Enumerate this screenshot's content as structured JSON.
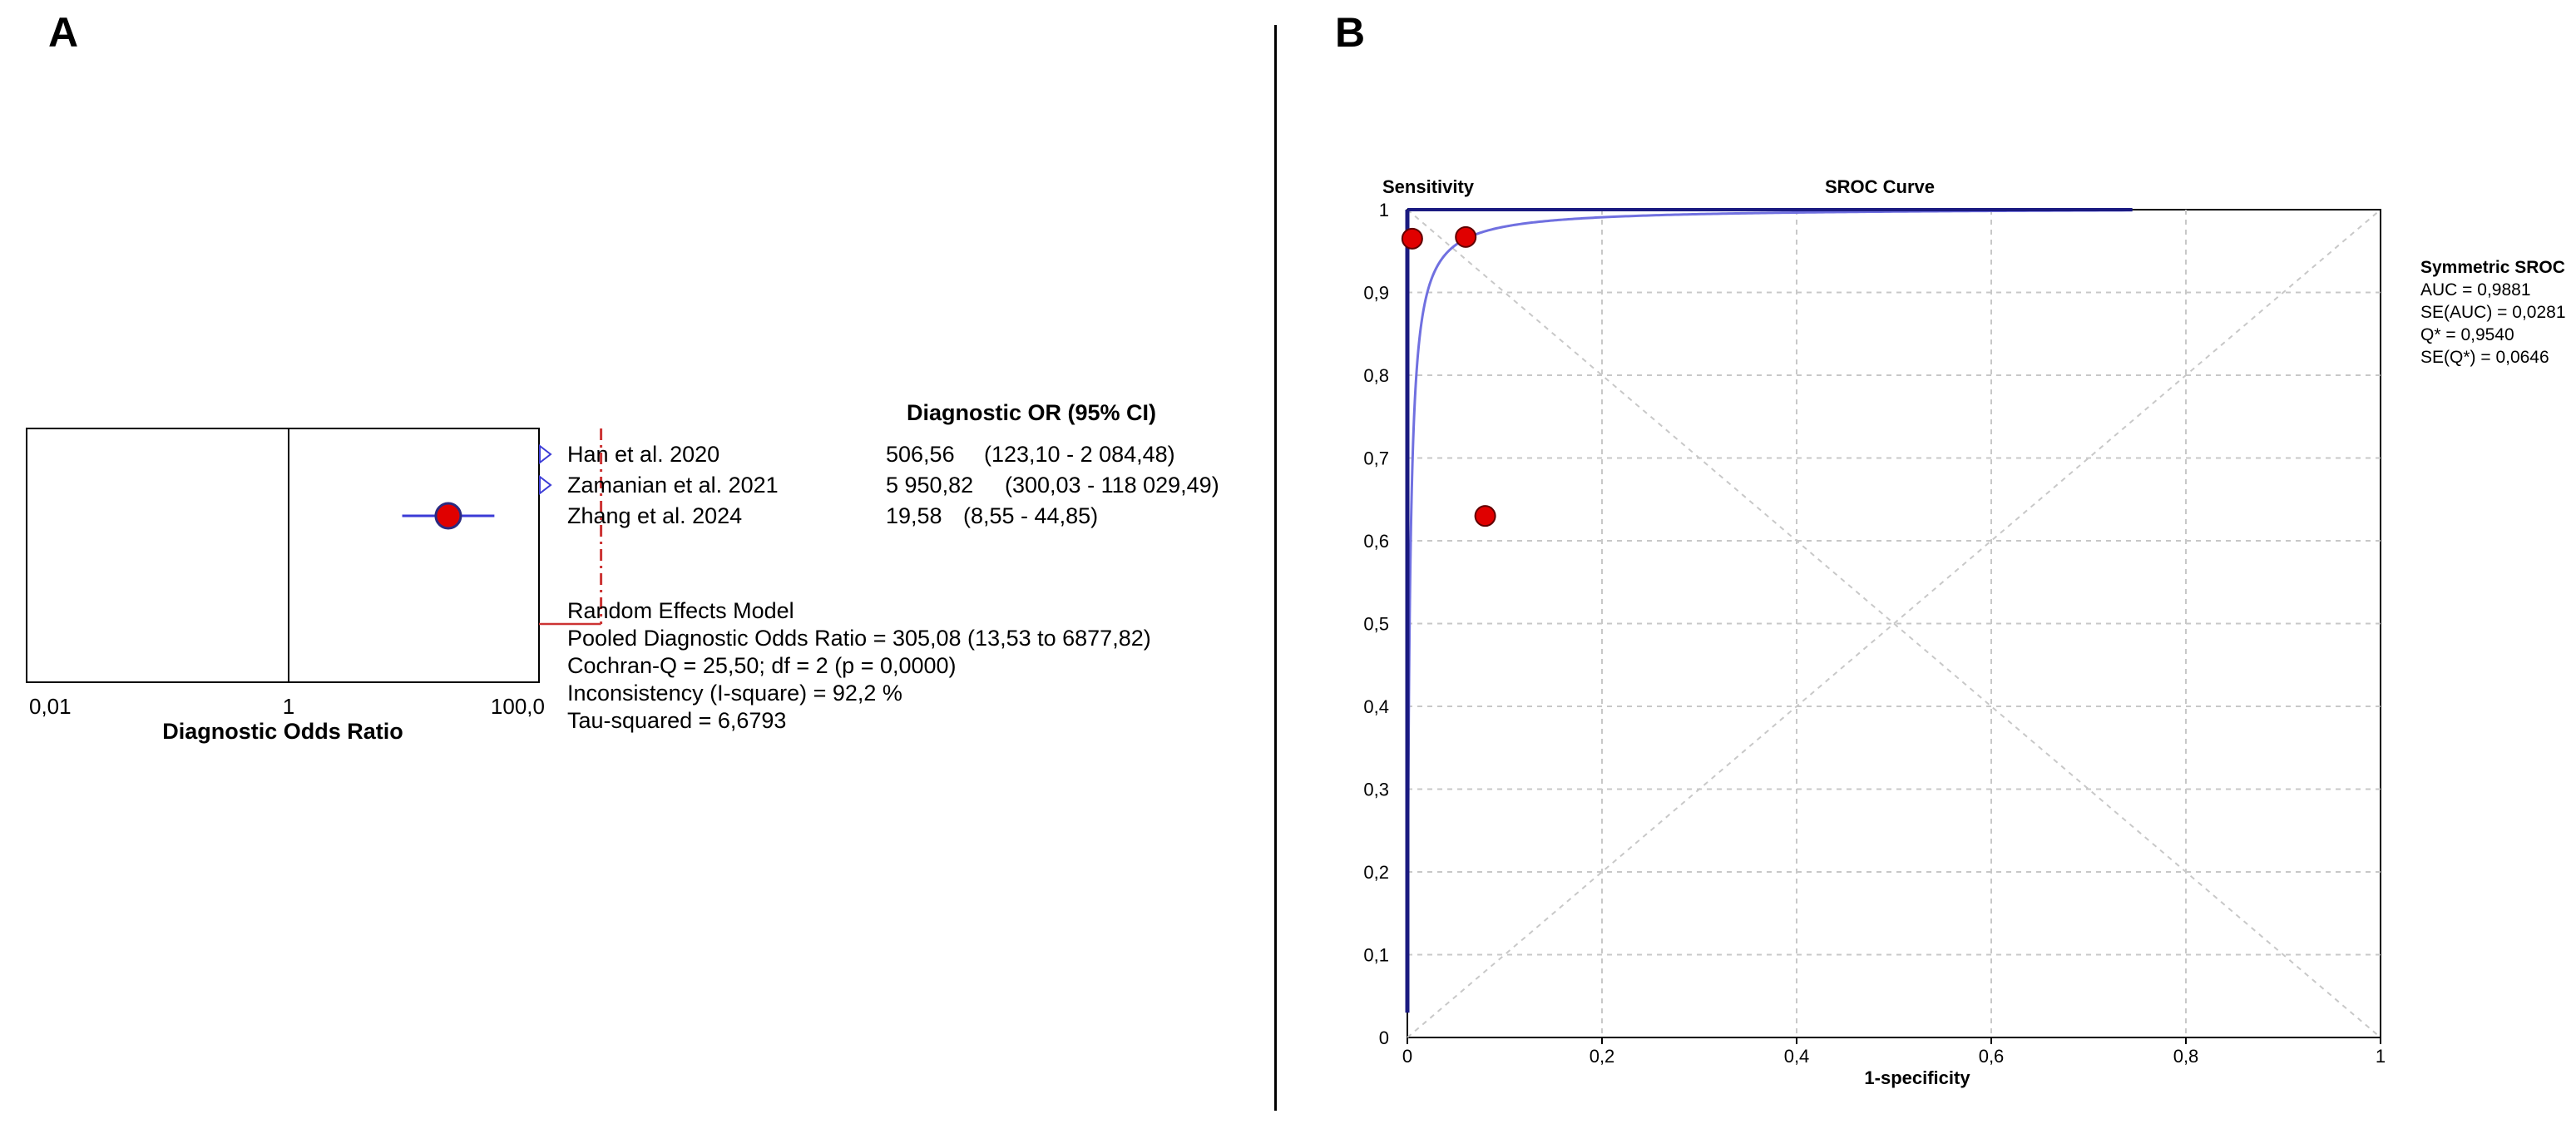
{
  "panel_a_letter": "A",
  "panel_b_letter": "B",
  "chart_data": [
    {
      "type": "forest",
      "title": "Diagnostic OR (95%  CI)",
      "xlabel": "Diagnostic Odds Ratio",
      "x_scale": "log",
      "xlim": [
        0.01,
        100
      ],
      "x_ticks": [
        "0,01",
        "1",
        "100,0"
      ],
      "studies": [
        {
          "name": "Han et al. 2020",
          "value_text": "506,56",
          "ci_text": "(123,10 - 2 084,48)",
          "or": 506.56,
          "lo": 123.1,
          "hi": 2084.48
        },
        {
          "name": "Zamanian et al. 2021",
          "value_text": "5 950,82",
          "ci_text": "(300,03 - 118 029,49)",
          "or": 5950.82,
          "lo": 300.03,
          "hi": 118029.49
        },
        {
          "name": "Zhang et al. 2024",
          "value_text": "19,58",
          "ci_text": "(8,55 - 44,85)",
          "or": 19.58,
          "lo": 8.55,
          "hi": 44.85
        }
      ],
      "pooled_or": 305.08,
      "summary_lines": [
        "Random Effects Model",
        "Pooled Diagnostic Odds Ratio = 305,08 (13,53 to 6877,82)",
        "Cochran-Q = 25,50; df = 2 (p = 0,0000)",
        "Inconsistency (I-square) = 92,2 %",
        "Tau-squared = 6,6793"
      ],
      "colors": {
        "line": "#3b3bd6",
        "marker": "#e00000",
        "pooled": "#cc3333"
      }
    },
    {
      "type": "line",
      "title": "SROC Curve",
      "ylabel": "Sensitivity",
      "xlabel": "1-specificity",
      "xlim": [
        0,
        1
      ],
      "ylim": [
        0,
        1
      ],
      "x_ticks": [
        "0",
        "0,2",
        "0,4",
        "0,6",
        "0,8",
        "1"
      ],
      "y_ticks": [
        "0",
        "0,1",
        "0,2",
        "0,3",
        "0,4",
        "0,5",
        "0,6",
        "0,7",
        "0,8",
        "0,9",
        "1"
      ],
      "points": [
        {
          "x": 0.005,
          "y": 0.965
        },
        {
          "x": 0.06,
          "y": 0.967
        },
        {
          "x": 0.08,
          "y": 0.63
        }
      ],
      "curve": {
        "name": "Symmetric SROC",
        "auc": 0.9881,
        "q_star": 0.954
      },
      "legend_title": "Symmetric SROC",
      "legend_lines": [
        "AUC = 0,9881",
        "SE(AUC) = 0,0281",
        "Q* = 0,9540",
        "SE(Q*) = 0,0646"
      ],
      "colors": {
        "curve": "#7070e0",
        "axis": "#1a1a80",
        "marker": "#e00000",
        "grid": "#c8c8c8"
      }
    }
  ]
}
